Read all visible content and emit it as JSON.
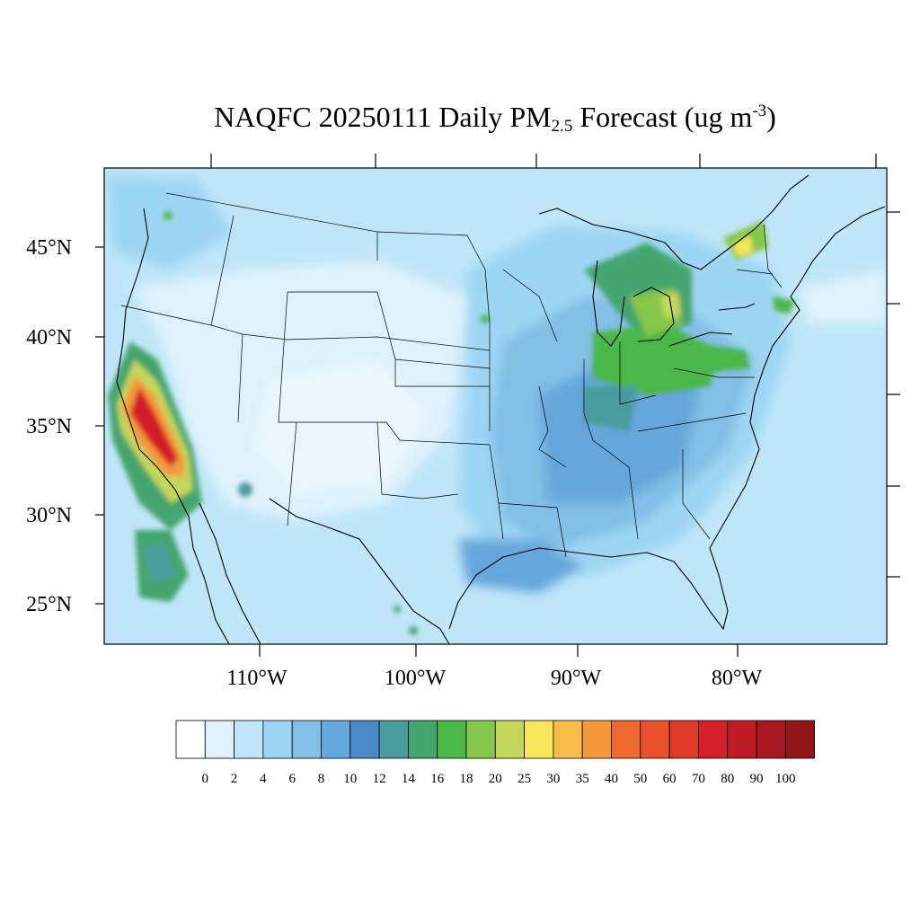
{
  "title": {
    "prefix": "NAQFC 20250111 Daily PM",
    "subscript": "2.5",
    "middle": " Forecast (ug m",
    "superscript": "-3",
    "suffix": ")"
  },
  "lat_labels": [
    "45°N",
    "40°N",
    "35°N",
    "30°N",
    "25°N"
  ],
  "lon_labels": [
    "110°W",
    "100°W",
    "90°W",
    "80°W"
  ],
  "colorbar": {
    "colors": [
      "#ffffff",
      "#dff2fc",
      "#bfe6f8",
      "#9dd6f4",
      "#81bfe6",
      "#65a6dc",
      "#4a8ac8",
      "#489c9e",
      "#45a56e",
      "#4ab748",
      "#86c64a",
      "#c4d75a",
      "#f7e65a",
      "#f7bd48",
      "#f49a3a",
      "#ef6a2e",
      "#e8512b",
      "#de3a27",
      "#d21f2a",
      "#bd1b25",
      "#a81821",
      "#8f1517"
    ],
    "labels": [
      "0",
      "2",
      "4",
      "6",
      "8",
      "10",
      "12",
      "14",
      "16",
      "18",
      "20",
      "25",
      "30",
      "35",
      "40",
      "50",
      "60",
      "70",
      "80",
      "90",
      "100"
    ]
  }
}
